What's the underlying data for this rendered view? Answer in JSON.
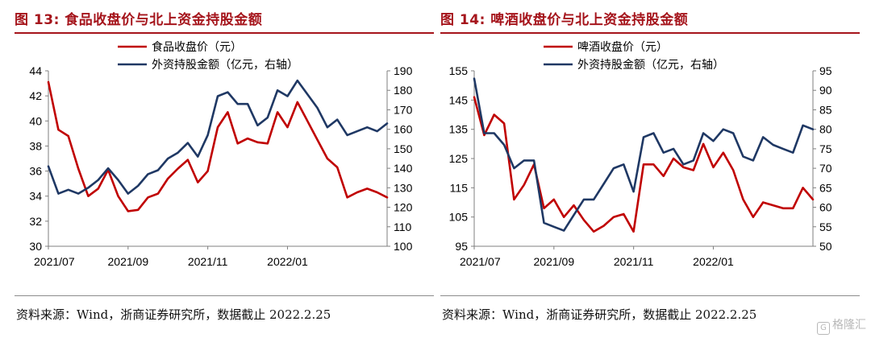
{
  "charts": [
    {
      "title": "图 13: 食品收盘价与北上资金持股金额",
      "source": "资料来源：Wind，浙商证券研究所，数据截止 2022.2.25"
    },
    {
      "title": "图 14: 啤酒收盘价与北上资金持股金额",
      "source": "资料来源：Wind，浙商证券研究所，数据截止 2022.2.25"
    }
  ],
  "watermark": "格隆汇",
  "chart_data": [
    {
      "type": "line",
      "x_tick_labels": [
        "2021/07",
        "2021/09",
        "2021/11",
        "2022/01"
      ],
      "y_left": {
        "range": [
          30,
          44
        ],
        "ticks": [
          30,
          32,
          34,
          36,
          38,
          40,
          42,
          44
        ]
      },
      "y_right": {
        "range": [
          100,
          190
        ],
        "ticks": [
          100,
          110,
          120,
          130,
          140,
          150,
          160,
          170,
          180,
          190
        ]
      },
      "grid": false,
      "legend_position": "top-center",
      "series": [
        {
          "name": "食品收盘价（元）",
          "axis": "left",
          "color": "#c00000",
          "values": [
            43.1,
            39.3,
            38.8,
            36.2,
            34.0,
            34.6,
            36.1,
            34.0,
            32.8,
            32.9,
            33.9,
            34.2,
            35.4,
            36.2,
            36.9,
            35.1,
            36.0,
            39.5,
            40.7,
            38.2,
            38.6,
            38.3,
            38.2,
            40.7,
            39.5,
            41.5,
            40.0,
            38.5,
            37.0,
            36.3,
            33.9,
            34.3,
            34.6,
            34.3,
            33.9
          ]
        },
        {
          "name": "外资持股金额（亿元，右轴）",
          "axis": "right",
          "color": "#1f3864",
          "values": [
            141,
            127,
            129,
            127,
            130,
            134,
            140,
            134,
            127,
            131,
            137,
            139,
            145,
            148,
            153,
            146,
            157,
            177,
            179,
            173,
            173,
            162,
            166,
            180,
            177,
            185,
            178,
            171,
            161,
            165,
            157,
            159,
            161,
            159,
            163
          ]
        }
      ]
    },
    {
      "type": "line",
      "x_tick_labels": [
        "2021/07",
        "2021/09",
        "2021/11",
        "2022/01"
      ],
      "y_left": {
        "range": [
          95,
          155
        ],
        "ticks": [
          95,
          105,
          115,
          125,
          135,
          145,
          155
        ]
      },
      "y_right": {
        "range": [
          50,
          95
        ],
        "ticks": [
          50,
          55,
          60,
          65,
          70,
          75,
          80,
          85,
          90,
          95
        ]
      },
      "grid": false,
      "legend_position": "top-center",
      "series": [
        {
          "name": "啤酒收盘价（元）",
          "axis": "left",
          "color": "#c00000",
          "values": [
            146,
            133,
            140,
            137,
            111,
            116,
            123,
            108,
            111,
            105,
            109,
            104,
            100,
            102,
            105,
            106,
            100,
            123,
            123,
            119,
            125,
            122,
            121,
            130,
            122,
            127,
            121,
            111,
            105,
            110,
            109,
            108,
            108,
            115,
            111
          ]
        },
        {
          "name": "外资持股金额（亿元，右轴）",
          "axis": "right",
          "color": "#1f3864",
          "values": [
            93,
            79,
            79,
            76,
            70,
            72,
            72,
            56,
            55,
            54,
            58,
            62,
            62,
            66,
            70,
            71,
            64,
            78,
            79,
            74,
            75,
            71,
            72,
            79,
            77,
            80,
            79,
            73,
            72,
            78,
            76,
            75,
            74,
            81,
            80
          ]
        }
      ]
    }
  ]
}
